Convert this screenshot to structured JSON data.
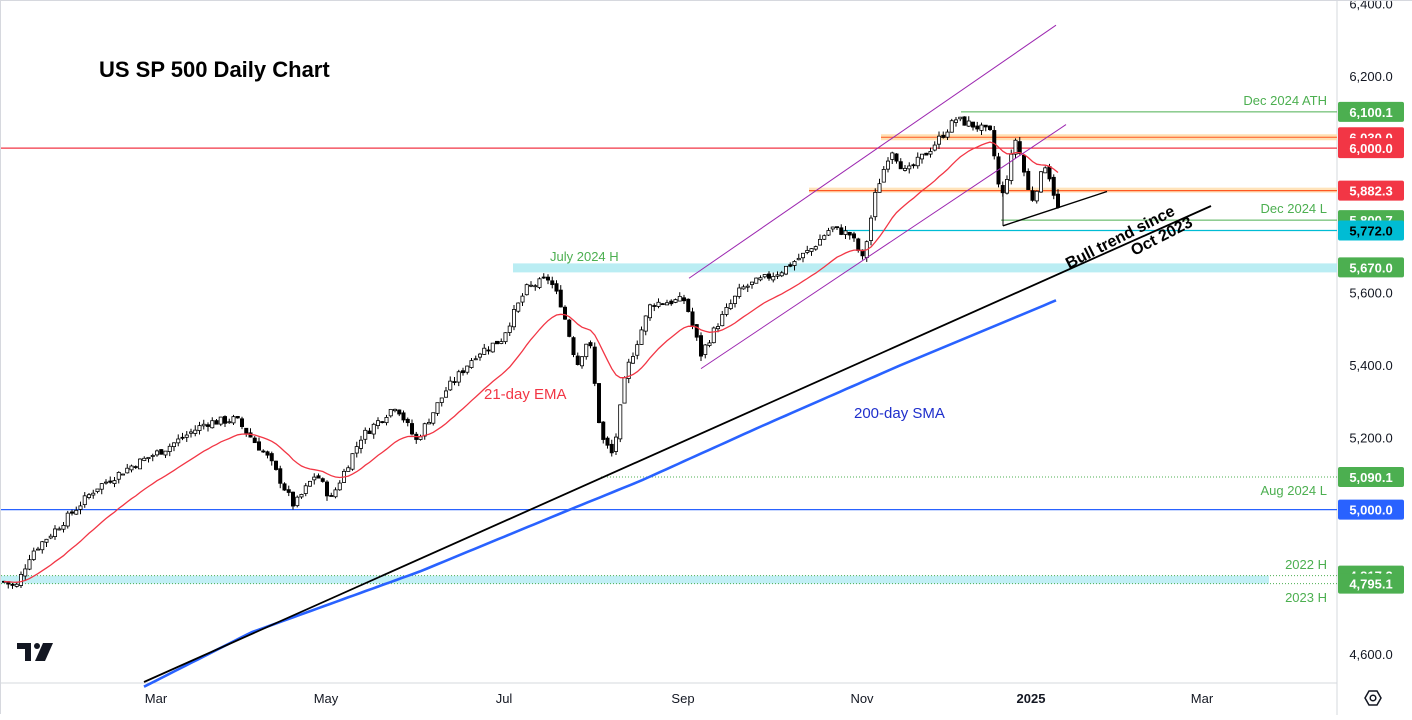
{
  "chart_data": {
    "type": "candlestick",
    "title": "US SP 500 Daily Chart",
    "y_axis": {
      "ticks": [
        "4,600.0",
        "5,200.0",
        "5,400.0",
        "5,600.0",
        "6,200.0",
        "6,400.0"
      ],
      "range": [
        4500,
        6420
      ]
    },
    "x_axis": {
      "ticks": [
        {
          "label": "Mar",
          "bold": false
        },
        {
          "label": "May",
          "bold": false
        },
        {
          "label": "Jul",
          "bold": false
        },
        {
          "label": "Sep",
          "bold": false
        },
        {
          "label": "Nov",
          "bold": false
        },
        {
          "label": "2025",
          "bold": true
        },
        {
          "label": "Mar",
          "bold": false
        }
      ]
    },
    "price_labels": [
      {
        "value": "6,100.1",
        "bg": "#4caf50",
        "fg": "#ffffff"
      },
      {
        "value": "6,030.0",
        "bg": "#f23645",
        "fg": "#ffffff"
      },
      {
        "value": "6,000.0",
        "bg": "#f23645",
        "fg": "#ffffff"
      },
      {
        "value": "5,882.3",
        "bg": "#f23645",
        "fg": "#ffffff"
      },
      {
        "value": "5,800.7",
        "bg": "#4caf50",
        "fg": "#ffffff"
      },
      {
        "value": "5,772.0",
        "bg": "#00bcd4",
        "fg": "#000000"
      },
      {
        "value": "5,670.0",
        "bg": "#4caf50",
        "fg": "#ffffff"
      },
      {
        "value": "5,090.1",
        "bg": "#4caf50",
        "fg": "#ffffff"
      },
      {
        "value": "5,000.0",
        "bg": "#2962ff",
        "fg": "#ffffff"
      },
      {
        "value": "4,817.2",
        "bg": "#4caf50",
        "fg": "#ffffff"
      },
      {
        "value": "4,795.1",
        "bg": "#4caf50",
        "fg": "#ffffff"
      }
    ],
    "annotations": {
      "dec_ath": "Dec 2024 ATH",
      "dec_low": "Dec 2024 L",
      "july_high": "July 2024 H",
      "aug_low": "Aug 2024 L",
      "h2022": "2022 H",
      "h2023": "2023 H",
      "ema": "21-day EMA",
      "sma": "200-day SMA",
      "trend_line1": "Bull trend since",
      "trend_line2": "Oct 2023"
    },
    "levels": {
      "ath": 6100.1,
      "resistance_6030": 6030,
      "round_6000": 6000,
      "resistance_5882": 5882.3,
      "dec_low": 5800.7,
      "support_5772": 5772,
      "july_high": 5670,
      "aug_low": 5090.1,
      "round_5000": 5000,
      "h2022": 4817.2,
      "h2023": 4795.1
    },
    "series": [
      {
        "name": "21-day EMA",
        "color": "#f23645"
      },
      {
        "name": "200-day SMA",
        "color": "#2962ff"
      }
    ],
    "colors": {
      "up": "#ffffff",
      "down": "#000000",
      "outline": "#000000",
      "channel": "#9c27b0",
      "trend": "#000000"
    }
  }
}
